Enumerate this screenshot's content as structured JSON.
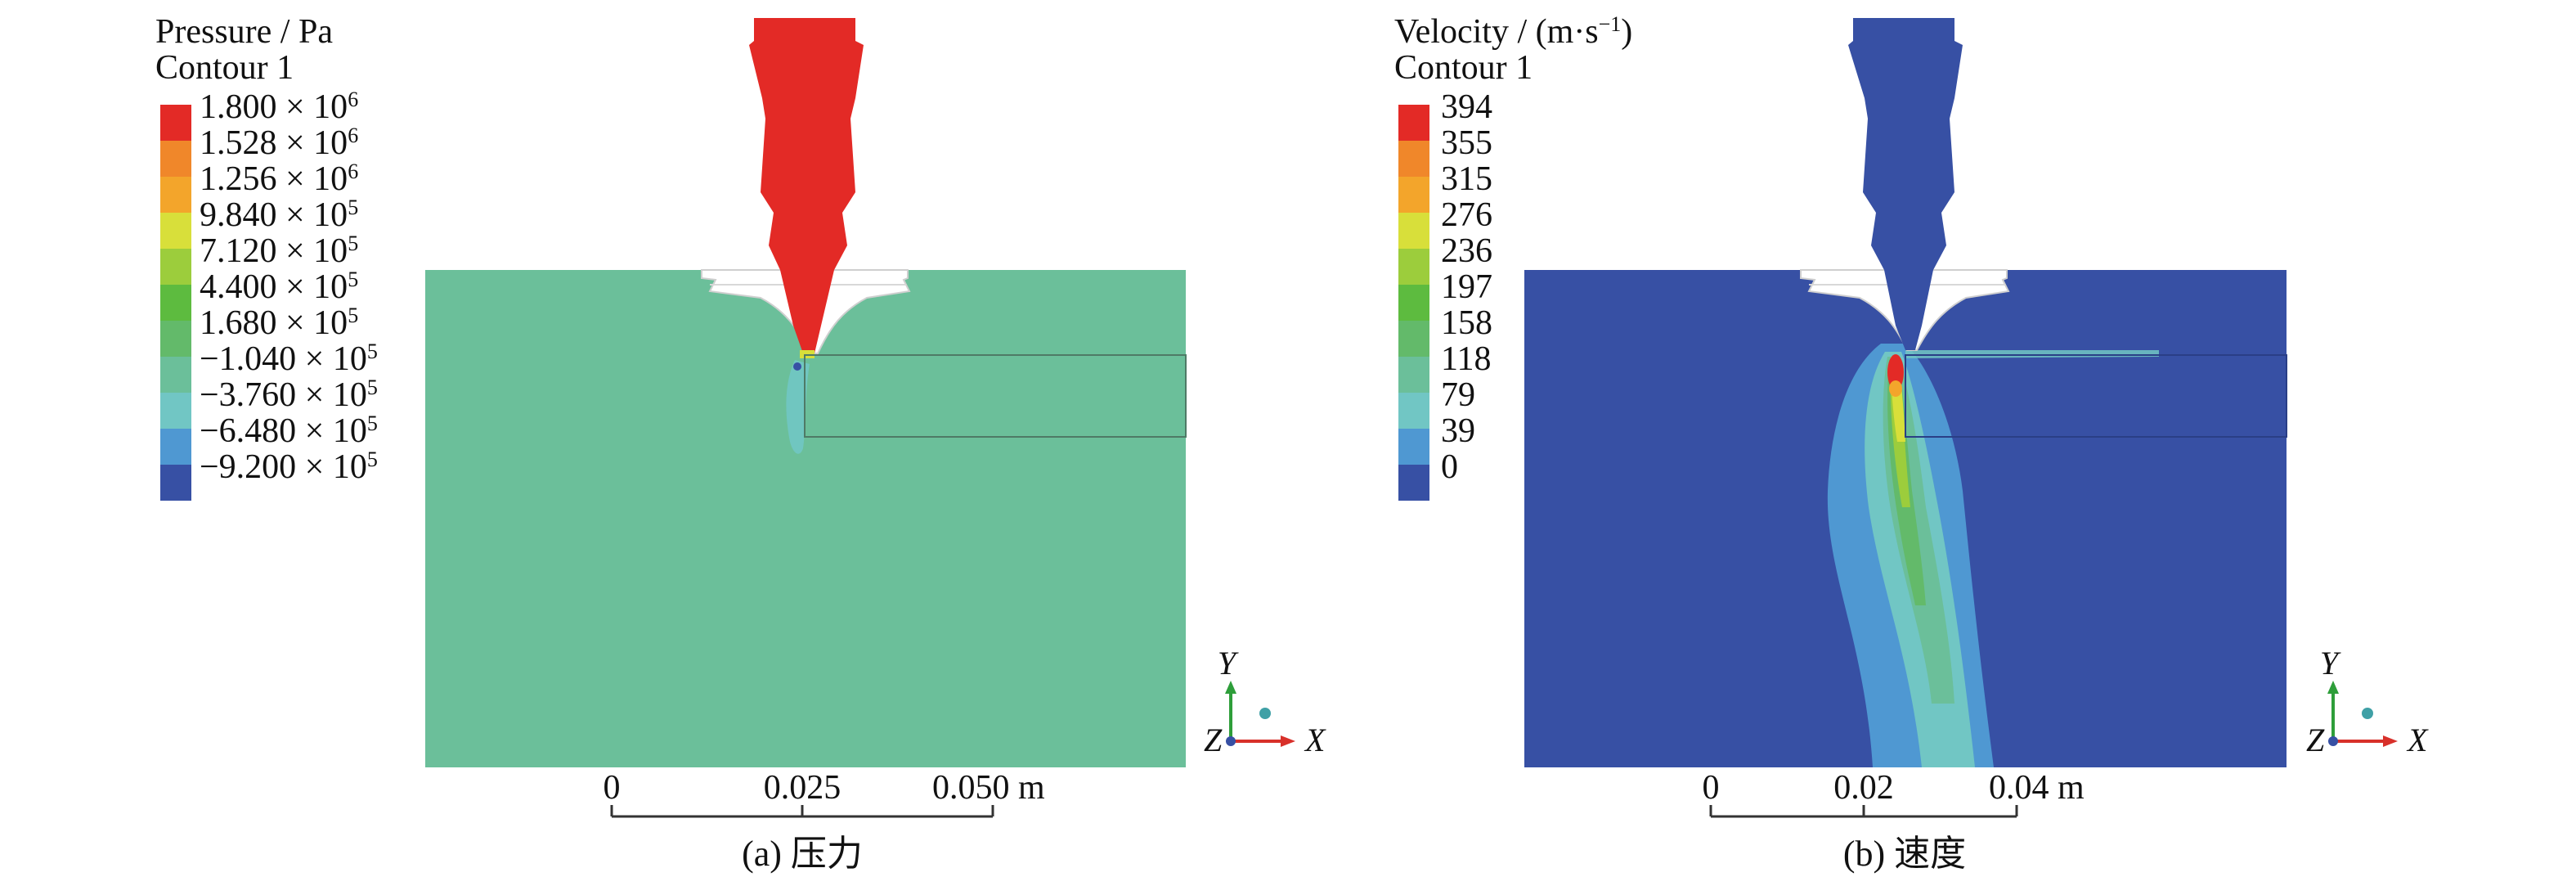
{
  "panels": [
    {
      "id": "pressure",
      "legend_title": "Pressure / Pa",
      "legend_subtitle": "Contour 1",
      "legend_labels": [
        {
          "mant": "1.800",
          "pw": "6",
          "sign": ""
        },
        {
          "mant": "1.528",
          "pw": "6",
          "sign": ""
        },
        {
          "mant": "1.256",
          "pw": "6",
          "sign": ""
        },
        {
          "mant": "9.840",
          "pw": "5",
          "sign": ""
        },
        {
          "mant": "7.120",
          "pw": "5",
          "sign": ""
        },
        {
          "mant": "4.400",
          "pw": "5",
          "sign": ""
        },
        {
          "mant": "1.680",
          "pw": "5",
          "sign": ""
        },
        {
          "mant": "1.040",
          "pw": "5",
          "sign": "−"
        },
        {
          "mant": "3.760",
          "pw": "5",
          "sign": "−"
        },
        {
          "mant": "6.480",
          "pw": "5",
          "sign": "−"
        },
        {
          "mant": "9.200",
          "pw": "5",
          "sign": "−"
        }
      ],
      "legend_colors": [
        "#e32a26",
        "#f0872a",
        "#f3a52b",
        "#d8df3a",
        "#9ccd3c",
        "#5dbb3f",
        "#63ba6a",
        "#6bbf9a",
        "#71c6c4",
        "#4f98d2",
        "#3750a4"
      ],
      "field_color": "#6bbf9a",
      "scale_ticks": [
        "0",
        "0.025",
        "0.050 m"
      ],
      "caption": "(a) 压力"
    },
    {
      "id": "velocity",
      "legend_title": "Velocity / (m·s",
      "legend_title_sup": "−1",
      "legend_title_close": ")",
      "legend_subtitle": "Contour 1",
      "legend_labels": [
        {
          "mant": "394"
        },
        {
          "mant": "355"
        },
        {
          "mant": "315"
        },
        {
          "mant": "276"
        },
        {
          "mant": "236"
        },
        {
          "mant": "197"
        },
        {
          "mant": "158"
        },
        {
          "mant": "118"
        },
        {
          "mant": "79"
        },
        {
          "mant": "39"
        },
        {
          "mant": "0"
        }
      ],
      "legend_colors": [
        "#e32a26",
        "#f0872a",
        "#f3a52b",
        "#d8df3a",
        "#9ccd3c",
        "#5dbb3f",
        "#63ba6a",
        "#6bbf9a",
        "#71c6c4",
        "#4f98d2",
        "#3750a4"
      ],
      "field_color": "#3750a4",
      "scale_ticks": [
        "0",
        "0.02",
        "0.04 m"
      ],
      "caption": "(b) 速度"
    }
  ],
  "axes_triad": {
    "y": "Y",
    "x": "X",
    "z": "Z",
    "y_color": "#2e9e3a",
    "x_color": "#d8302a"
  }
}
